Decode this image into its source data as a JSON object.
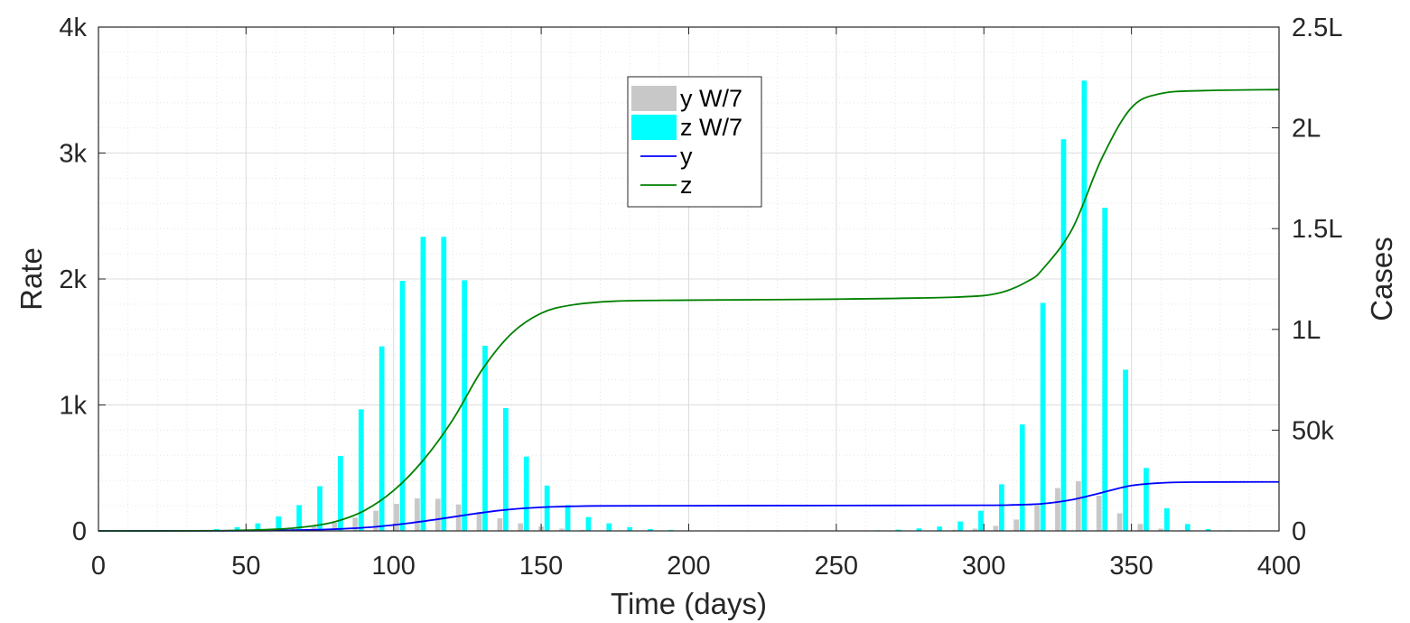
{
  "chart_data": {
    "type": "bar+line",
    "xlabel": "Time (days)",
    "ylabel_left": "Rate",
    "ylabel_right": "Cases",
    "xlim": [
      0,
      400
    ],
    "ylim_left": [
      0,
      4000
    ],
    "ylim_right": [
      0,
      250000
    ],
    "x_ticks": [
      {
        "value": 0,
        "label": "0"
      },
      {
        "value": 50,
        "label": "50"
      },
      {
        "value": 100,
        "label": "100"
      },
      {
        "value": 150,
        "label": "150"
      },
      {
        "value": 200,
        "label": "200"
      },
      {
        "value": 250,
        "label": "250"
      },
      {
        "value": 300,
        "label": "300"
      },
      {
        "value": 350,
        "label": "350"
      },
      {
        "value": 400,
        "label": "400"
      }
    ],
    "y_left_ticks": [
      {
        "value": 0,
        "label": "0"
      },
      {
        "value": 1000,
        "label": "1k"
      },
      {
        "value": 2000,
        "label": "2k"
      },
      {
        "value": 3000,
        "label": "3k"
      },
      {
        "value": 4000,
        "label": "4k"
      }
    ],
    "y_right_ticks": [
      {
        "value": 0,
        "label": "0"
      },
      {
        "value": 50000,
        "label": "50k"
      },
      {
        "value": 100000,
        "label": "1L"
      },
      {
        "value": 150000,
        "label": "1.5L"
      },
      {
        "value": 200000,
        "label": "2L"
      },
      {
        "value": 250000,
        "label": "2.5L"
      }
    ],
    "grid": true,
    "legend_position": "top-center",
    "bar_days": [
      32,
      39,
      46,
      53,
      60,
      67,
      74,
      81,
      88,
      95,
      102,
      109,
      116,
      123,
      130,
      137,
      144,
      151,
      158,
      165,
      172,
      179,
      186,
      193,
      200,
      207,
      214,
      221,
      228,
      235,
      242,
      249,
      256,
      263,
      270,
      277,
      284,
      291,
      298,
      305,
      312,
      319,
      326,
      333,
      340,
      347,
      354,
      361,
      368,
      375,
      382,
      389
    ],
    "series": [
      {
        "name": "y W/7",
        "kind": "bar",
        "axis": "left",
        "color": "#c8c8c8",
        "values": [
          0,
          2,
          5,
          8,
          12,
          22,
          40,
          65,
          105,
          160,
          215,
          258,
          255,
          210,
          150,
          100,
          60,
          35,
          18,
          8,
          4,
          2,
          1,
          0,
          0,
          0,
          0,
          0,
          0,
          0,
          0,
          0,
          0,
          0,
          0,
          2,
          4,
          8,
          18,
          40,
          90,
          205,
          340,
          395,
          280,
          140,
          55,
          18,
          6,
          2,
          0,
          0
        ]
      },
      {
        "name": "z W/7",
        "kind": "bar",
        "axis": "left",
        "color": "#00ffff",
        "values": [
          5,
          15,
          30,
          60,
          115,
          205,
          355,
          595,
          965,
          1465,
          1985,
          2335,
          2335,
          1990,
          1470,
          975,
          590,
          360,
          205,
          110,
          60,
          30,
          15,
          8,
          3,
          1,
          0,
          0,
          0,
          0,
          0,
          0,
          0,
          5,
          10,
          20,
          35,
          75,
          160,
          370,
          845,
          1810,
          3110,
          3575,
          2565,
          1280,
          500,
          180,
          55,
          15,
          5,
          0
        ]
      },
      {
        "name": "y",
        "kind": "line",
        "axis": "right",
        "color": "#0000ff",
        "points": [
          [
            0,
            0
          ],
          [
            40,
            50
          ],
          [
            60,
            200
          ],
          [
            75,
            600
          ],
          [
            85,
            1200
          ],
          [
            95,
            2200
          ],
          [
            105,
            3800
          ],
          [
            115,
            5800
          ],
          [
            125,
            8000
          ],
          [
            135,
            10000
          ],
          [
            145,
            11300
          ],
          [
            155,
            12000
          ],
          [
            170,
            12400
          ],
          [
            200,
            12500
          ],
          [
            250,
            12600
          ],
          [
            300,
            12700
          ],
          [
            310,
            12900
          ],
          [
            320,
            13500
          ],
          [
            330,
            15500
          ],
          [
            340,
            19000
          ],
          [
            350,
            22500
          ],
          [
            360,
            23800
          ],
          [
            370,
            24200
          ],
          [
            400,
            24300
          ]
        ]
      },
      {
        "name": "z",
        "kind": "line",
        "axis": "right",
        "color": "#008000",
        "points": [
          [
            0,
            0
          ],
          [
            40,
            100
          ],
          [
            60,
            800
          ],
          [
            70,
            2000
          ],
          [
            80,
            4500
          ],
          [
            90,
            10000
          ],
          [
            100,
            20000
          ],
          [
            110,
            35000
          ],
          [
            120,
            55000
          ],
          [
            130,
            80000
          ],
          [
            140,
            98000
          ],
          [
            150,
            108000
          ],
          [
            160,
            112000
          ],
          [
            175,
            114000
          ],
          [
            200,
            114500
          ],
          [
            250,
            115000
          ],
          [
            290,
            116000
          ],
          [
            305,
            118000
          ],
          [
            315,
            124000
          ],
          [
            320,
            130000
          ],
          [
            330,
            150000
          ],
          [
            340,
            185000
          ],
          [
            350,
            210000
          ],
          [
            360,
            217000
          ],
          [
            375,
            218500
          ],
          [
            400,
            219000
          ]
        ]
      }
    ]
  }
}
